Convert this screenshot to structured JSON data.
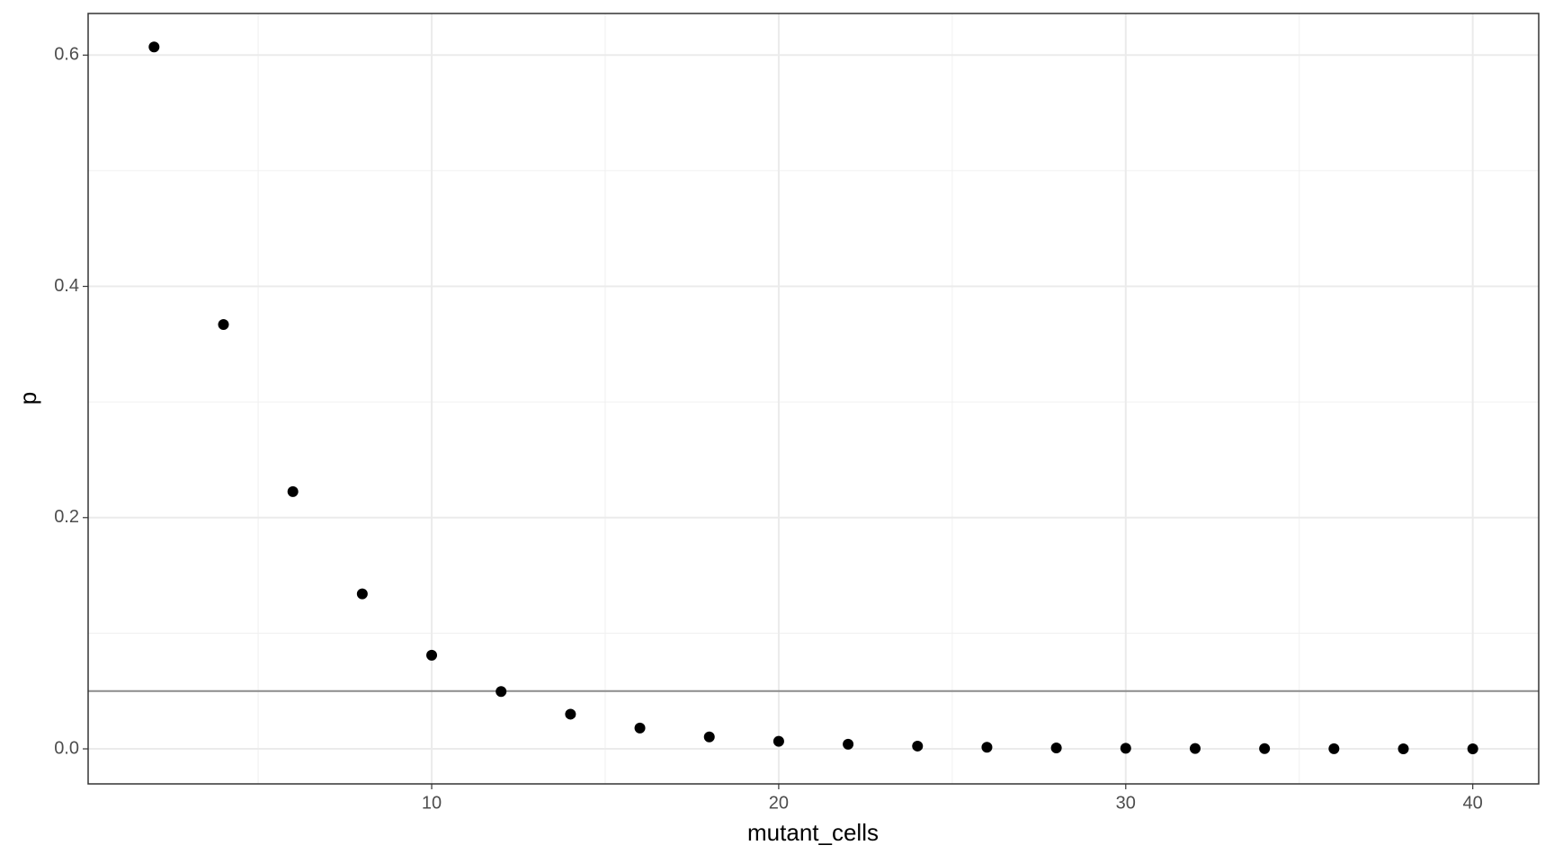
{
  "chart_data": {
    "type": "scatter",
    "x_label": "mutant_cells",
    "y_label": "p",
    "x": [
      2,
      4,
      6,
      8,
      10,
      12,
      14,
      16,
      18,
      20,
      22,
      24,
      26,
      28,
      30,
      32,
      34,
      36,
      38,
      40
    ],
    "series": [
      {
        "color": "#000000",
        "values": [
          0.607,
          0.367,
          0.2225,
          0.134,
          0.081,
          0.0496,
          0.03,
          0.018,
          0.0103,
          0.0065,
          0.004,
          0.0024,
          0.0014,
          0.0008,
          0.0005,
          0.0003,
          0.0002,
          0.0001,
          5e-05,
          3e-05
        ]
      }
    ],
    "xlim": [
      0.1,
      41.9
    ],
    "ylim": [
      -0.0303,
      0.636
    ],
    "xticks": [
      10,
      20,
      30,
      40
    ],
    "yticks": [
      0.0,
      0.2,
      0.4,
      0.6
    ],
    "xminorticks": [
      5,
      15,
      25,
      35
    ],
    "yminorticks": [
      0.1,
      0.3,
      0.5
    ],
    "hline": {
      "value": 0.05,
      "color": "#8c8c8c"
    },
    "grid": true
  }
}
